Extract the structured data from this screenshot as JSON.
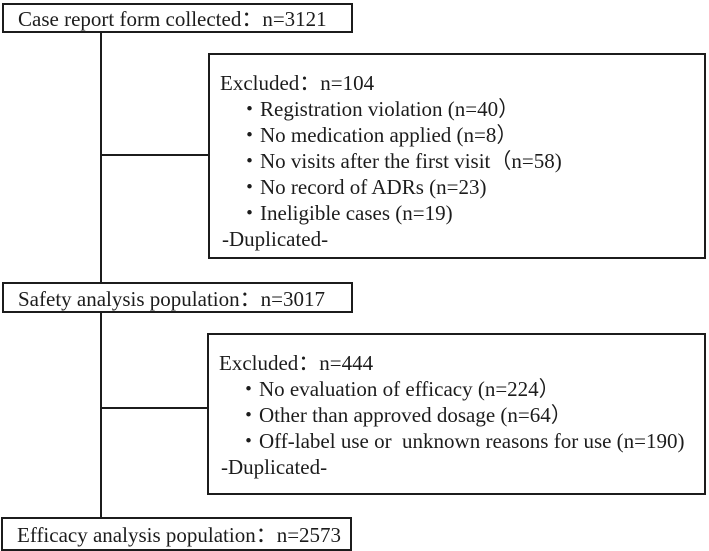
{
  "figure": {
    "background": "#ffffff",
    "line_color": "#1c1c1c",
    "nodes": {
      "collected": {
        "label": "Case report form collected：n=3121"
      },
      "safety": {
        "label": "Safety analysis population：n=3017"
      },
      "efficacy": {
        "label": "Efficacy analysis population：n=2573"
      }
    },
    "exclusion1": {
      "title": "Excluded：n=104",
      "items": [
        "・Registration violation (n=40）",
        "・No medication applied (n=8）",
        "・No visits after the first visit（n=58)",
        "・No record of ADRs (n=23)",
        "・Ineligible cases (n=19)",
        "-Duplicated-"
      ]
    },
    "exclusion2": {
      "title": "Excluded：n=444",
      "items": [
        "・No evaluation of efficacy (n=224）",
        "・Other than approved dosage (n=64）",
        "・Off-label use or  unknown reasons for use (n=190)",
        "-Duplicated-"
      ]
    }
  }
}
